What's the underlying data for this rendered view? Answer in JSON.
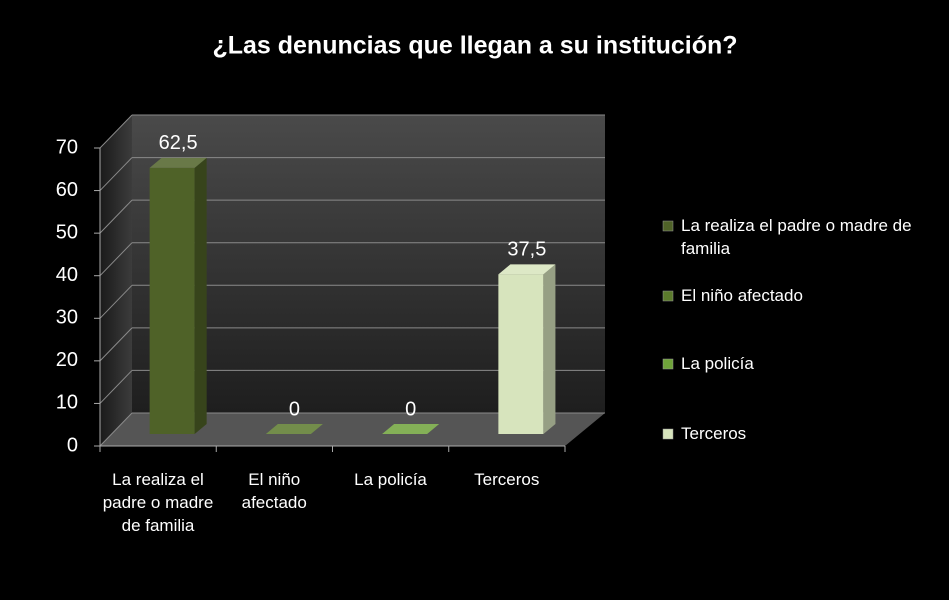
{
  "chart_data": {
    "type": "bar3d",
    "title": "¿Las denuncias que llegan a su institución?",
    "categories": [
      "La realiza el padre o madre de familia",
      "El niño afectado",
      "La policía",
      "Terceros"
    ],
    "values": [
      62.5,
      0,
      0,
      37.5
    ],
    "value_labels": [
      "62,5",
      "0",
      "0",
      "37,5"
    ],
    "colors": [
      "#4f6228",
      "#5b7a2c",
      "#6fa33a",
      "#d7e4bd"
    ],
    "ylim": [
      0,
      70
    ],
    "yticks": [
      0,
      10,
      20,
      30,
      40,
      50,
      60,
      70
    ],
    "grid": true,
    "legend": "right"
  }
}
